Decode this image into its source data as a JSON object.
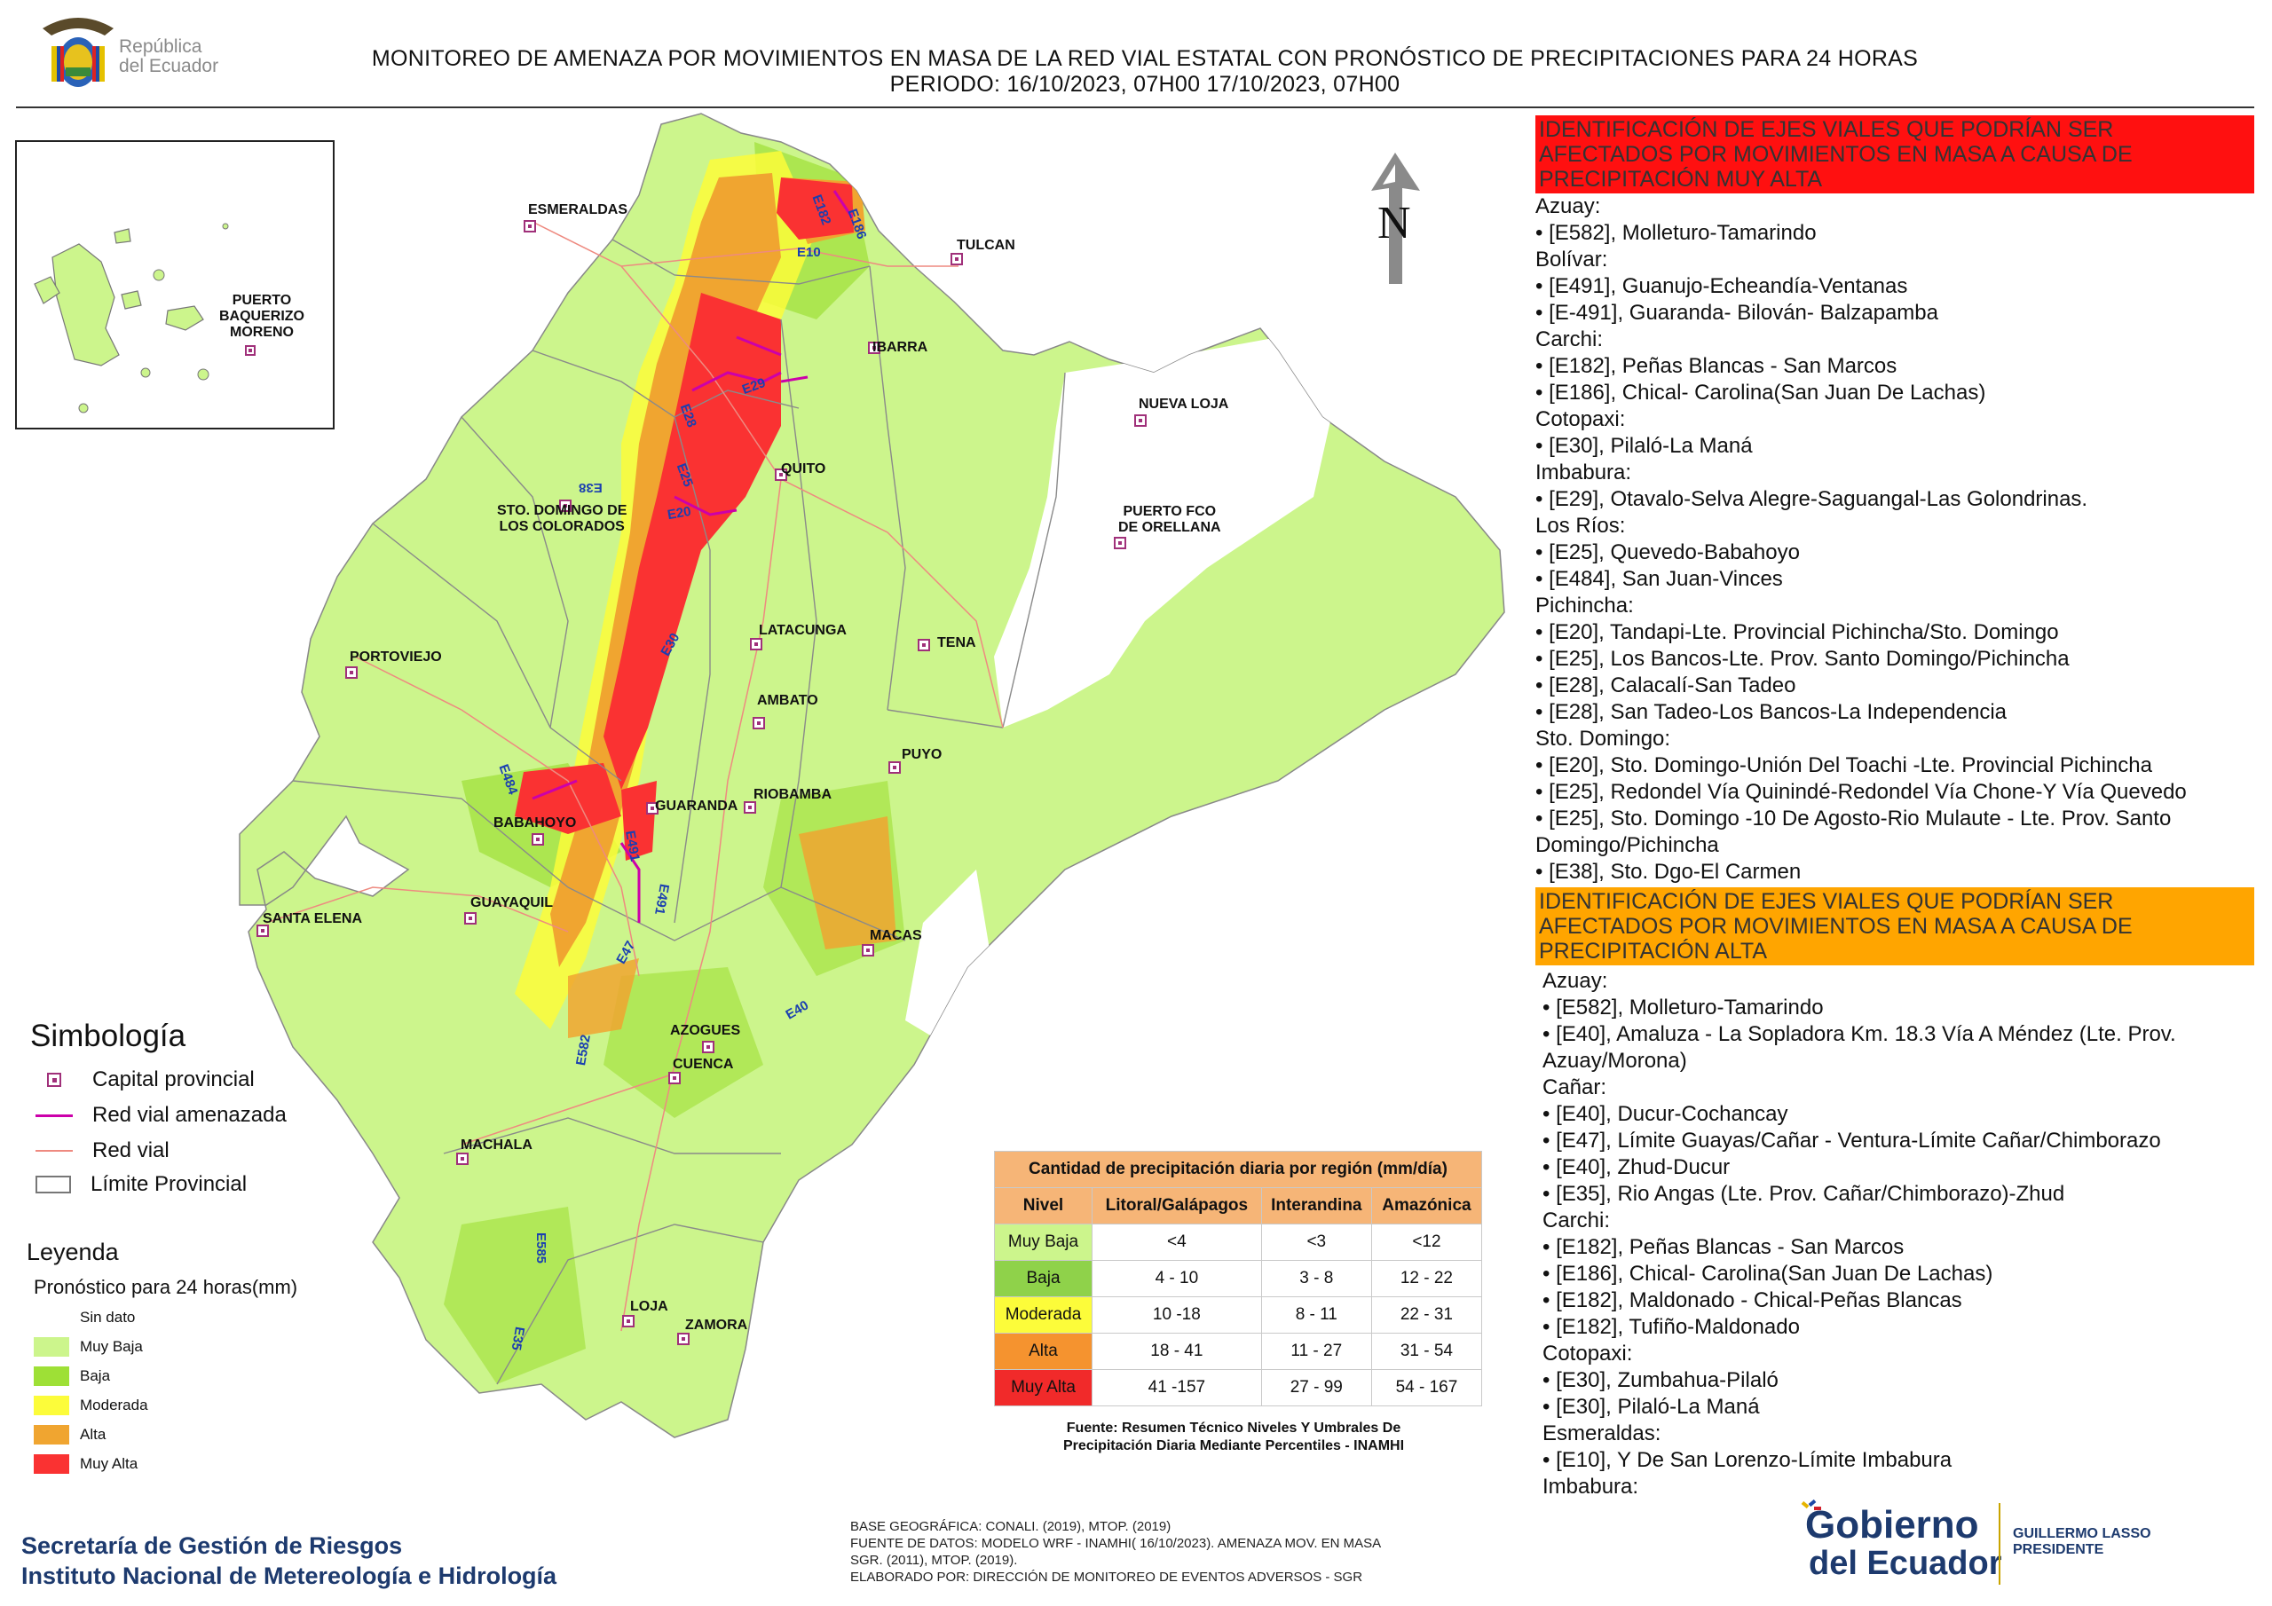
{
  "header": {
    "republica_line1": "República",
    "republica_line2": "del Ecuador",
    "title_line1": "MONITOREO DE AMENAZA POR MOVIMIENTOS EN MASA DE LA RED VIAL  ESTATAL  CON PRONÓSTICO  DE  PRECIPITACIONES PARA 24 HORAS",
    "title_line2": "PERIODO: 16/10/2023, 07H00 17/10/2023, 07H00"
  },
  "north_arrow": "N",
  "map": {
    "cities": [
      {
        "name": "ESMERALDAS"
      },
      {
        "name": "TULCAN"
      },
      {
        "name": "IBARRA"
      },
      {
        "name": "NUEVA LOJA"
      },
      {
        "name": "QUITO"
      },
      {
        "name": "STO. DOMINGO DE",
        "name2": "LOS COLORADOS"
      },
      {
        "name": "PUERTO FCO",
        "name2": "DE ORELLANA"
      },
      {
        "name": "PORTOVIEJO"
      },
      {
        "name": "LATACUNGA"
      },
      {
        "name": "TENA"
      },
      {
        "name": "AMBATO"
      },
      {
        "name": "PUYO"
      },
      {
        "name": "GUARANDA"
      },
      {
        "name": "RIOBAMBA"
      },
      {
        "name": "BABAHOYO"
      },
      {
        "name": "SANTA ELENA"
      },
      {
        "name": "GUAYAQUIL"
      },
      {
        "name": "MACAS"
      },
      {
        "name": "AZOGUES"
      },
      {
        "name": "CUENCA"
      },
      {
        "name": "MACHALA"
      },
      {
        "name": "LOJA"
      },
      {
        "name": "ZAMORA"
      }
    ],
    "inset_city": {
      "name1": "PUERTO",
      "name2": "BAQUERIZO",
      "name3": "MORENO"
    },
    "roads": [
      "E182",
      "E186",
      "E10",
      "E29",
      "E28",
      "E25",
      "E38",
      "E20",
      "E30",
      "E484",
      "E491",
      "E491",
      "E47",
      "E582",
      "E40",
      "E585",
      "E35"
    ]
  },
  "symbology": {
    "title": "Simbología",
    "items": [
      {
        "label": "Capital provincial",
        "icon": "capital-square-icon",
        "color": "#a0307a"
      },
      {
        "label": "Red vial amenazada",
        "icon": "threatened-road-line",
        "color": "#cc00aa"
      },
      {
        "label": "Red vial",
        "icon": "road-line",
        "color": "#ee8a80"
      },
      {
        "label": "Límite Provincial",
        "icon": "province-box",
        "color": "#777777"
      }
    ]
  },
  "legend": {
    "title": "Leyenda",
    "subtitle": "Pronóstico para 24 horas(mm)",
    "items": [
      {
        "label": "Sin dato",
        "color": "#ffffff"
      },
      {
        "label": "Muy Baja",
        "color": "#ccf58c"
      },
      {
        "label": "Baja",
        "color": "#9ee036"
      },
      {
        "label": "Moderada",
        "color": "#fcfc3a"
      },
      {
        "label": "Alta",
        "color": "#f0a530"
      },
      {
        "label": "Muy Alta",
        "color": "#fa3232"
      }
    ]
  },
  "precip_table": {
    "title": "Cantidad de precipitación diaria por región (mm/día)",
    "headers": [
      "Nivel",
      "Litoral/Galápagos",
      "Interandina",
      "Amazónica"
    ],
    "rows": [
      {
        "nivel": "Muy Baja",
        "color": "#ccf58c",
        "litoral": "<4",
        "interandina": "<3",
        "amazonica": "<12"
      },
      {
        "nivel": "Baja",
        "color": "#8fd24a",
        "litoral": "4 - 10",
        "interandina": "3 - 8",
        "amazonica": "12 - 22"
      },
      {
        "nivel": "Moderada",
        "color": "#fcfc3a",
        "litoral": "10 -18",
        "interandina": "8 - 11",
        "amazonica": "22 - 31"
      },
      {
        "nivel": "Alta",
        "color": "#f5932f",
        "litoral": "18 - 41",
        "interandina": "11 - 27",
        "amazonica": "31 - 54"
      },
      {
        "nivel": "Muy Alta",
        "color": "#f12a2a",
        "litoral": "41 -157",
        "interandina": "27 - 99",
        "amazonica": "54 - 167"
      }
    ],
    "source_line1": "Fuente: Resumen Técnico Niveles Y Umbrales De",
    "source_line2": "Precipitación Diaria Mediante Percentiles - INAMHI"
  },
  "right_panel": {
    "very_high": {
      "title_line1": "IDENTIFICACIÓN DE EJES VIALES QUE PODRÍAN SER",
      "title_line2": "AFECTADOS POR MOVIMIENTOS EN MASA A CAUSA DE",
      "title_line3": "PRECIPITACIÓN MUY ALTA",
      "color": "#ff1010",
      "lines": [
        "Azuay:",
        "• [E582], Molleturo-Tamarindo",
        "Bolívar:",
        "• [E491], Guanujo-Echeandía-Ventanas",
        "• [E-491], Guaranda- Bilován- Balzapamba",
        "Carchi:",
        "• [E182], Peñas Blancas - San Marcos",
        "• [E186], Chical- Carolina(San Juan De Lachas)",
        "Cotopaxi:",
        "• [E30], Pilaló-La Maná",
        "Imbabura:",
        "• [E29], Otavalo-Selva Alegre-Saguangal-Las Golondrinas.",
        "Los Ríos:",
        "• [E25], Quevedo-Babahoyo",
        "• [E484], San Juan-Vinces",
        "Pichincha:",
        "• [E20], Tandapi-Lte. Provincial Pichincha/Sto. Domingo",
        "• [E25], Los Bancos-Lte. Prov. Santo Domingo/Pichincha",
        "• [E28], Calacalí-San Tadeo",
        "• [E28], San Tadeo-Los Bancos-La Independencia",
        "Sto. Domingo:",
        "• [E20], Sto. Domingo-Unión Del Toachi -Lte. Provincial Pichincha",
        "• [E25], Redondel Vía Quinindé-Redondel Vía Chone-Y Vía Quevedo",
        "• [E25], Sto. Domingo -10 De Agosto-Rio Mulaute - Lte. Prov. Santo",
        "Domingo/Pichincha",
        "• [E38], Sto. Dgo-El Carmen"
      ]
    },
    "high": {
      "title_line1": "IDENTIFICACIÓN DE EJES VIALES QUE PODRÍAN SER",
      "title_line2": "AFECTADOS POR MOVIMIENTOS EN MASA A CAUSA DE",
      "title_line3": "PRECIPITACIÓN  ALTA",
      "color": "#ffa500",
      "lines": [
        "Azuay:",
        "• [E582], Molleturo-Tamarindo",
        "• [E40], Amaluza - La Sopladora Km. 18.3 Vía A Méndez (Lte. Prov.",
        "Azuay/Morona)",
        "Cañar:",
        "• [E40], Ducur-Cochancay",
        "• [E47], Límite Guayas/Cañar - Ventura-Límite Cañar/Chimborazo",
        "• [E40], Zhud-Ducur",
        "• [E35], Rio Angas (Lte. Prov. Cañar/Chimborazo)-Zhud",
        "Carchi:",
        "• [E182], Peñas Blancas - San Marcos",
        "• [E186], Chical- Carolina(San Juan De Lachas)",
        "• [E182], Maldonado - Chical-Peñas Blancas",
        "• [E182], Tufiño-Maldonado",
        "Cotopaxi:",
        "• [E30], Zumbahua-Pilaló",
        "• [E30], Pilaló-La Maná",
        "Esmeraldas:",
        "• [E10], Y De San Lorenzo-Límite Imbabura",
        "Imbabura:"
      ]
    }
  },
  "footer": {
    "org_line1": "Secretaría de Gestión de Riesgos",
    "org_line2": "Instituto Nacional de Metereología e Hidrología",
    "base_line1": "BASE GEOGRÁFICA: CONALI. (2019), MTOP. (2019)",
    "base_line2": "FUENTE DE DATOS: MODELO WRF - INAMHI( 16/10/2023).  AMENAZA MOV. EN MASA",
    "base_line3": "SGR. (2011), MTOP. (2019).",
    "base_line4": "ELABORADO POR: DIRECCIÓN DE MONITOREO DE EVENTOS ADVERSOS - SGR",
    "gob_line1": "Gobierno",
    "gob_line2": "del Ecuador",
    "president_line1": "GUILLERMO LASSO",
    "president_line2": "PRESIDENTE"
  }
}
